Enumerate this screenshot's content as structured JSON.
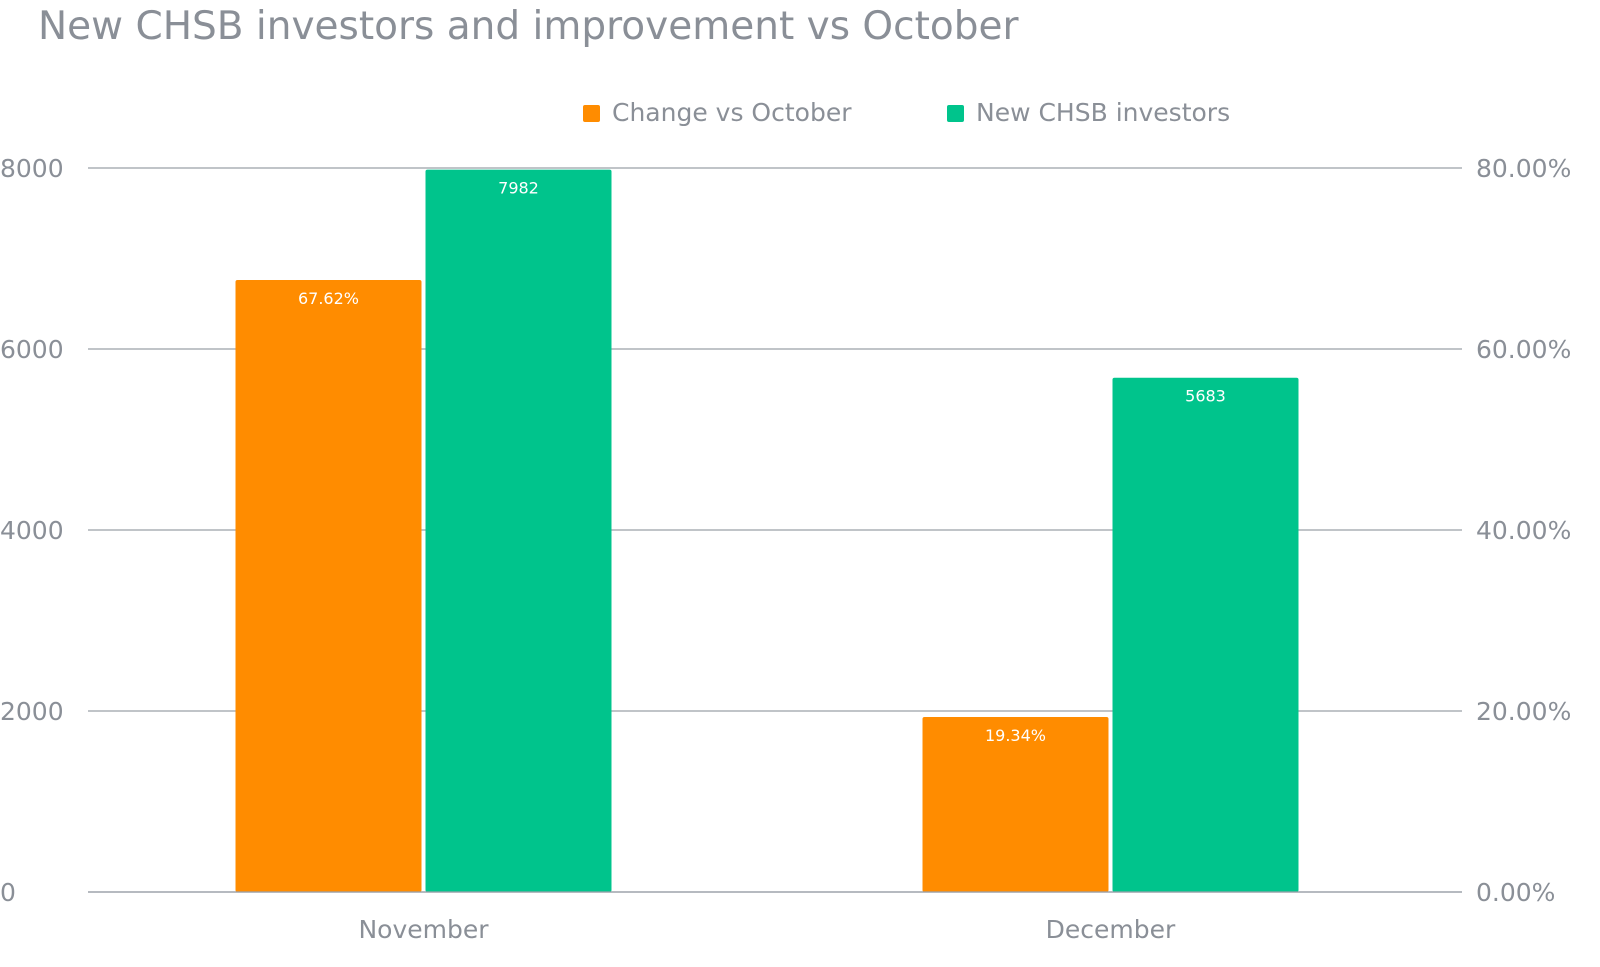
{
  "chart_data": {
    "type": "bar",
    "title": "New CHSB investors and improvement vs October",
    "categories": [
      "November",
      "December"
    ],
    "series": [
      {
        "name": "Change vs October",
        "axis": "right",
        "color": "#FF8C00",
        "values": [
          67.62,
          19.34
        ],
        "labels": [
          "67.62%",
          "19.34%"
        ]
      },
      {
        "name": "New CHSB investors",
        "axis": "left",
        "color": "#00C48C",
        "values": [
          7982,
          5683
        ],
        "labels": [
          "7982",
          "5683"
        ]
      }
    ],
    "y_left": {
      "ylim": [
        0,
        8000
      ],
      "ticks": [
        0,
        2000,
        4000,
        6000,
        8000
      ],
      "tick_labels": [
        "0",
        "2000",
        "4000",
        "6000",
        "8000"
      ]
    },
    "y_right": {
      "ylim": [
        0,
        80
      ],
      "ticks": [
        0,
        20,
        40,
        60,
        80
      ],
      "tick_labels": [
        "0.00%",
        "20.00%",
        "40.00%",
        "60.00%",
        "80.00%"
      ]
    },
    "grid": true,
    "legend": "top-center",
    "xlabel": "",
    "ylabel": ""
  }
}
